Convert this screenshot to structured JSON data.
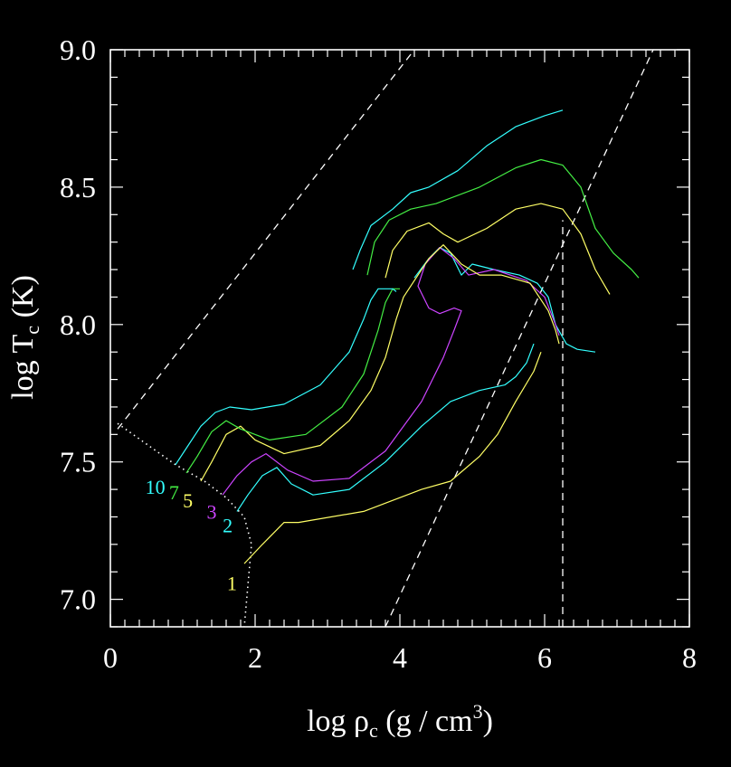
{
  "chart_data": {
    "type": "line",
    "title": "",
    "xlabel": {
      "main": "log ρ",
      "sub": "c",
      "unit": " (g / cm",
      "sup": "3",
      "close": ")"
    },
    "ylabel": {
      "main": "log T",
      "sub": "c",
      "unit": " (K)"
    },
    "xlim": [
      0,
      8
    ],
    "ylim": [
      6.9,
      9.0
    ],
    "x_ticks": [
      0,
      2,
      4,
      6,
      8
    ],
    "x_tick_labels": [
      "0",
      "2",
      "4",
      "6",
      "8"
    ],
    "y_ticks": [
      7.0,
      7.5,
      8.0,
      8.5,
      9.0
    ],
    "y_tick_labels": [
      "7.0",
      "7.5",
      "8.0",
      "8.5",
      "9.0"
    ],
    "background": "#000000",
    "axis_color": "#ffffff",
    "reference_lines": [
      {
        "name": "dashed-diagonal-left",
        "style": "dashed",
        "points": [
          [
            0.1,
            7.62
          ],
          [
            4.2,
            9.0
          ]
        ]
      },
      {
        "name": "dashed-diagonal-right",
        "style": "dashed",
        "points": [
          [
            3.8,
            6.9
          ],
          [
            7.5,
            9.0
          ]
        ]
      },
      {
        "name": "dashed-vertical",
        "style": "dashed",
        "points": [
          [
            6.25,
            6.9
          ],
          [
            6.25,
            8.38
          ]
        ]
      },
      {
        "name": "dotted-zams",
        "style": "dotted",
        "points": [
          [
            0.1,
            7.64
          ],
          [
            0.9,
            7.49
          ],
          [
            1.3,
            7.43
          ],
          [
            1.6,
            7.37
          ],
          [
            1.85,
            7.3
          ],
          [
            1.95,
            7.2
          ],
          [
            1.9,
            7.05
          ],
          [
            1.85,
            6.9
          ]
        ]
      }
    ],
    "series": [
      {
        "name": "1",
        "label": "1",
        "color": "#ffff66",
        "segments": [
          [
            [
              1.85,
              7.13
            ],
            [
              2.1,
              7.2
            ],
            [
              2.4,
              7.28
            ],
            [
              2.6,
              7.28
            ],
            [
              3.5,
              7.32
            ],
            [
              4.3,
              7.4
            ],
            [
              4.7,
              7.43
            ],
            [
              5.1,
              7.52
            ],
            [
              5.35,
              7.6
            ],
            [
              5.6,
              7.72
            ],
            [
              5.85,
              7.83
            ],
            [
              5.95,
              7.9
            ]
          ]
        ]
      },
      {
        "name": "2",
        "label": "2",
        "color": "#33ffff",
        "segments": [
          [
            [
              1.75,
              7.32
            ],
            [
              1.9,
              7.38
            ],
            [
              2.1,
              7.45
            ],
            [
              2.3,
              7.48
            ],
            [
              2.5,
              7.42
            ],
            [
              2.8,
              7.38
            ],
            [
              3.3,
              7.4
            ],
            [
              3.8,
              7.5
            ],
            [
              4.3,
              7.63
            ],
            [
              4.7,
              7.72
            ],
            [
              5.1,
              7.76
            ],
            [
              5.45,
              7.78
            ],
            [
              5.6,
              7.81
            ],
            [
              5.75,
              7.86
            ],
            [
              5.85,
              7.93
            ]
          ],
          [
            [
              4.2,
              8.17
            ],
            [
              4.4,
              8.24
            ],
            [
              4.55,
              8.28
            ],
            [
              4.7,
              8.26
            ],
            [
              4.85,
              8.18
            ],
            [
              5.0,
              8.22
            ],
            [
              5.3,
              8.2
            ],
            [
              5.65,
              8.18
            ],
            [
              5.9,
              8.15
            ],
            [
              6.05,
              8.1
            ],
            [
              6.15,
              8.0
            ],
            [
              6.3,
              7.93
            ],
            [
              6.45,
              7.91
            ],
            [
              6.7,
              7.9
            ]
          ]
        ]
      },
      {
        "name": "3",
        "label": "3",
        "color": "#cc44ff",
        "segments": [
          [
            [
              1.55,
              7.38
            ],
            [
              1.75,
              7.45
            ],
            [
              1.95,
              7.5
            ],
            [
              2.15,
              7.53
            ],
            [
              2.45,
              7.47
            ],
            [
              2.8,
              7.43
            ],
            [
              3.3,
              7.44
            ],
            [
              3.8,
              7.54
            ],
            [
              4.3,
              7.72
            ],
            [
              4.6,
              7.88
            ],
            [
              4.75,
              7.98
            ],
            [
              4.85,
              8.05
            ],
            [
              4.75,
              8.06
            ],
            [
              4.55,
              8.04
            ],
            [
              4.4,
              8.06
            ],
            [
              4.25,
              8.14
            ],
            [
              4.35,
              8.22
            ],
            [
              4.55,
              8.28
            ],
            [
              4.75,
              8.24
            ],
            [
              4.95,
              8.18
            ],
            [
              5.3,
              8.2
            ],
            [
              5.75,
              8.16
            ],
            [
              6.0,
              8.1
            ],
            [
              6.15,
              8.0
            ],
            [
              6.2,
              7.96
            ]
          ]
        ]
      },
      {
        "name": "5",
        "label": "5",
        "color": "#ffff66",
        "segments": [
          [
            [
              1.25,
              7.43
            ],
            [
              1.4,
              7.5
            ],
            [
              1.6,
              7.6
            ],
            [
              1.8,
              7.63
            ],
            [
              2.0,
              7.58
            ],
            [
              2.4,
              7.53
            ],
            [
              2.9,
              7.56
            ],
            [
              3.3,
              7.65
            ],
            [
              3.6,
              7.76
            ],
            [
              3.8,
              7.88
            ],
            [
              3.95,
              8.02
            ],
            [
              4.05,
              8.1
            ],
            [
              4.2,
              8.16
            ],
            [
              4.4,
              8.24
            ],
            [
              4.6,
              8.29
            ],
            [
              4.85,
              8.22
            ],
            [
              5.1,
              8.18
            ],
            [
              5.4,
              8.18
            ],
            [
              5.8,
              8.15
            ],
            [
              6.05,
              8.05
            ],
            [
              6.15,
              7.98
            ],
            [
              6.2,
              7.93
            ]
          ],
          [
            [
              3.8,
              8.17
            ],
            [
              3.9,
              8.27
            ],
            [
              4.1,
              8.34
            ],
            [
              4.4,
              8.37
            ],
            [
              4.6,
              8.33
            ],
            [
              4.8,
              8.3
            ],
            [
              5.2,
              8.35
            ],
            [
              5.6,
              8.42
            ],
            [
              5.95,
              8.44
            ],
            [
              6.25,
              8.42
            ],
            [
              6.5,
              8.33
            ],
            [
              6.7,
              8.2
            ],
            [
              6.9,
              8.11
            ]
          ]
        ]
      },
      {
        "name": "7",
        "label": "7",
        "color": "#44ee44",
        "segments": [
          [
            [
              1.05,
              7.46
            ],
            [
              1.2,
              7.52
            ],
            [
              1.4,
              7.61
            ],
            [
              1.6,
              7.65
            ],
            [
              1.8,
              7.62
            ],
            [
              2.2,
              7.58
            ],
            [
              2.7,
              7.6
            ],
            [
              3.2,
              7.7
            ],
            [
              3.5,
              7.82
            ],
            [
              3.7,
              7.98
            ],
            [
              3.8,
              8.08
            ],
            [
              3.9,
              8.13
            ],
            [
              4.0,
              8.13
            ]
          ],
          [
            [
              3.55,
              8.18
            ],
            [
              3.65,
              8.3
            ],
            [
              3.85,
              8.38
            ],
            [
              4.15,
              8.42
            ],
            [
              4.5,
              8.44
            ],
            [
              5.1,
              8.5
            ],
            [
              5.6,
              8.57
            ],
            [
              5.95,
              8.6
            ],
            [
              6.25,
              8.58
            ],
            [
              6.5,
              8.5
            ],
            [
              6.7,
              8.35
            ],
            [
              6.95,
              8.26
            ],
            [
              7.2,
              8.2
            ],
            [
              7.3,
              8.17
            ]
          ]
        ]
      },
      {
        "name": "10",
        "label": "10",
        "color": "#33ffff",
        "segments": [
          [
            [
              0.9,
              7.49
            ],
            [
              1.05,
              7.55
            ],
            [
              1.25,
              7.63
            ],
            [
              1.45,
              7.68
            ],
            [
              1.65,
              7.7
            ],
            [
              1.95,
              7.69
            ],
            [
              2.4,
              7.71
            ],
            [
              2.9,
              7.78
            ],
            [
              3.3,
              7.9
            ],
            [
              3.5,
              8.02
            ],
            [
              3.6,
              8.09
            ],
            [
              3.7,
              8.13
            ],
            [
              3.9,
              8.13
            ],
            [
              3.95,
              8.12
            ]
          ],
          [
            [
              3.35,
              8.2
            ],
            [
              3.45,
              8.27
            ],
            [
              3.6,
              8.36
            ],
            [
              3.9,
              8.42
            ],
            [
              4.15,
              8.48
            ],
            [
              4.4,
              8.5
            ],
            [
              4.8,
              8.56
            ],
            [
              5.2,
              8.65
            ],
            [
              5.6,
              8.72
            ],
            [
              6.0,
              8.76
            ],
            [
              6.25,
              8.78
            ]
          ]
        ]
      }
    ],
    "curve_labels": [
      {
        "text": "10",
        "color": "#33ffff",
        "x": 0.62,
        "y": 7.41
      },
      {
        "text": "7",
        "color": "#44ee44",
        "x": 0.88,
        "y": 7.39
      },
      {
        "text": "5",
        "color": "#ffff66",
        "x": 1.07,
        "y": 7.36
      },
      {
        "text": "3",
        "color": "#cc44ff",
        "x": 1.4,
        "y": 7.32
      },
      {
        "text": "2",
        "color": "#33ffff",
        "x": 1.62,
        "y": 7.27
      },
      {
        "text": "1",
        "color": "#ffff66",
        "x": 1.68,
        "y": 7.06
      }
    ]
  }
}
